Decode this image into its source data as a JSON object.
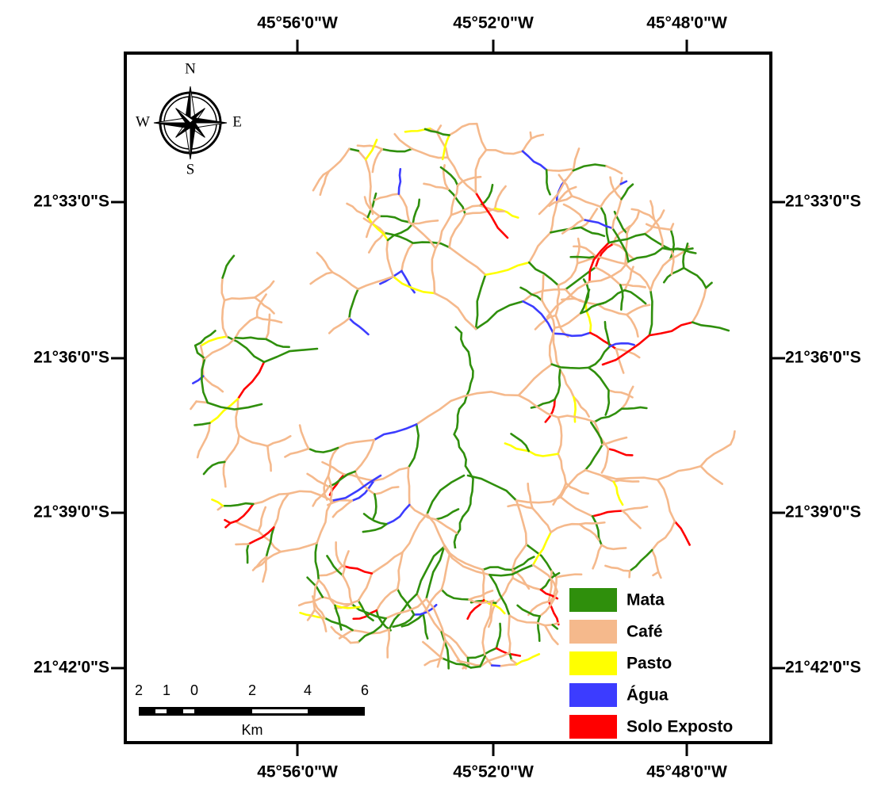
{
  "map": {
    "longitude_labels": [
      "45°56'0\"W",
      "45°52'0\"W",
      "45°48'0\"W"
    ],
    "latitude_labels": [
      "21°33'0\"S",
      "21°36'0\"S",
      "21°39'0\"S",
      "21°42'0\"S"
    ],
    "compass": {
      "n": "N",
      "s": "S",
      "e": "E",
      "w": "W"
    },
    "scale_bar": {
      "labels": [
        2,
        1,
        0,
        2,
        4,
        6
      ],
      "unit": "Km"
    },
    "legend": [
      {
        "label": "Mata",
        "color": "#2f8f0c"
      },
      {
        "label": "Café",
        "color": "#f5b98c"
      },
      {
        "label": "Pasto",
        "color": "#ffff00"
      },
      {
        "label": "Água",
        "color": "#3c3cff"
      },
      {
        "label": "Solo Exposto",
        "color": "#ff0000"
      }
    ]
  }
}
